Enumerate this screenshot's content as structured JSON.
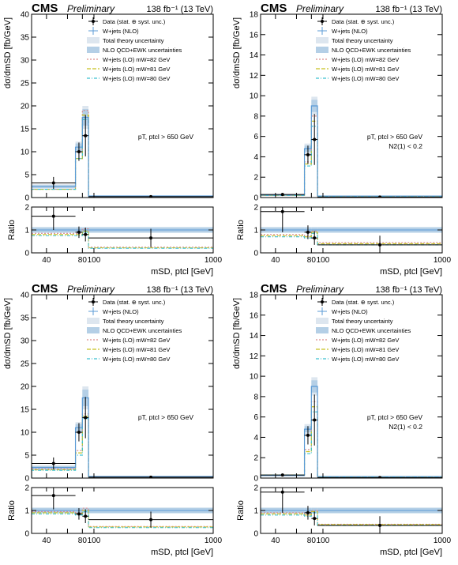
{
  "figure": {
    "experiment": "CMS",
    "status": "Preliminary",
    "lumi_label": "138 fb⁻¹ (13 TeV)",
    "x_title": "mSD, ptcl [GeV]",
    "y_title": "dσ/dmSD [fb/GeV]",
    "ratio_title": "Ratio",
    "legend": [
      "Data (stat. ⊕ syst. unc.)",
      "W+jets (NLO)",
      "Total theory uncertainty",
      "NLO QCD+EWK uncertainties",
      "W+jets (LO) mW=82 GeV",
      "W+jets (LO) mW=81 GeV",
      "W+jets (LO) mW=80 GeV"
    ],
    "colors": {
      "data": "#000000",
      "nlo": "#5b9bd5",
      "total_unc": "#dde6ef",
      "qcd_ewk_unc": "#b4cfe6",
      "lo82": "#d98c8c",
      "lo81": "#c8c020",
      "lo80": "#3cc0d0"
    }
  },
  "chart_data": [
    {
      "type": "bar",
      "panel": "top-left",
      "annotation": [
        "pT, ptcl > 650 GeV"
      ],
      "bins": [
        [
          30,
          70
        ],
        [
          70,
          80
        ],
        [
          80,
          90
        ],
        [
          90,
          1000
        ]
      ],
      "xlim": [
        30,
        1000
      ],
      "xscale": "log",
      "xticks": [
        40,
        60,
        80,
        100,
        1000
      ],
      "xtick_labels": [
        "40",
        "",
        "80",
        "100",
        "1000"
      ],
      "ylim": [
        0,
        40
      ],
      "yticks": [
        0,
        5,
        10,
        15,
        20,
        25,
        30,
        35,
        40
      ],
      "ratio_ylim": [
        0,
        2
      ],
      "ratio_yticks": [
        0,
        1,
        2
      ],
      "data": {
        "values": [
          3.2,
          10.0,
          13.5,
          0.2
        ],
        "errors": [
          1.3,
          2.0,
          4.5,
          0.1
        ]
      },
      "nlo": {
        "values": [
          2.4,
          11.0,
          17.5,
          0.35
        ],
        "total_unc": [
          0.5,
          1.2,
          2.5,
          0.06
        ],
        "qcd_ewk_unc": [
          0.3,
          0.8,
          1.8,
          0.04
        ]
      },
      "lo82": [
        1.8,
        8.5,
        19.0,
        0.3
      ],
      "lo81": [
        1.8,
        8.5,
        18.0,
        0.3
      ],
      "lo80": [
        1.8,
        8.5,
        17.0,
        0.3
      ],
      "ratio": {
        "data": [
          1.6,
          0.9,
          0.8,
          0.65
        ],
        "data_err": [
          0.6,
          0.25,
          0.3,
          0.4
        ],
        "unc": [
          0.12,
          0.12,
          0.12,
          0.12
        ],
        "lo82": [
          0.85,
          0.85,
          1.05,
          0.25
        ],
        "lo81": [
          0.8,
          0.8,
          0.95,
          0.22
        ],
        "lo80": [
          0.75,
          0.75,
          0.9,
          0.2
        ]
      }
    },
    {
      "type": "bar",
      "panel": "top-right",
      "annotation": [
        "pT, ptcl > 650 GeV",
        "N2(1) < 0.2"
      ],
      "bins": [
        [
          30,
          70
        ],
        [
          70,
          80
        ],
        [
          80,
          90
        ],
        [
          90,
          1000
        ]
      ],
      "xlim": [
        30,
        1000
      ],
      "xscale": "log",
      "xticks": [
        40,
        60,
        80,
        100,
        1000
      ],
      "xtick_labels": [
        "40",
        "",
        "80",
        "100",
        "1000"
      ],
      "ylim": [
        0,
        18
      ],
      "yticks": [
        0,
        2,
        4,
        6,
        8,
        10,
        12,
        14,
        16,
        18
      ],
      "ratio_ylim": [
        0,
        2
      ],
      "ratio_yticks": [
        0,
        1,
        2
      ],
      "data": {
        "values": [
          0.3,
          4.2,
          5.7,
          0.05
        ],
        "errors": [
          0.15,
          0.9,
          2.5,
          0.04
        ]
      },
      "nlo": {
        "values": [
          0.25,
          4.8,
          9.0,
          0.15
        ],
        "total_unc": [
          0.06,
          0.5,
          0.9,
          0.03
        ],
        "qcd_ewk_unc": [
          0.04,
          0.3,
          0.6,
          0.02
        ]
      },
      "lo82": [
        0.2,
        3.5,
        8.0,
        0.1
      ],
      "lo81": [
        0.2,
        3.3,
        7.5,
        0.1
      ],
      "lo80": [
        0.2,
        3.1,
        7.0,
        0.1
      ],
      "ratio": {
        "data": [
          1.8,
          0.9,
          0.65,
          0.35
        ],
        "data_err": [
          0.9,
          0.3,
          0.3,
          0.4
        ],
        "unc": [
          0.12,
          0.12,
          0.12,
          0.12
        ],
        "lo82": [
          0.8,
          0.75,
          0.95,
          0.45
        ],
        "lo81": [
          0.75,
          0.7,
          0.9,
          0.4
        ],
        "lo80": [
          0.7,
          0.65,
          0.85,
          0.35
        ]
      }
    },
    {
      "type": "bar",
      "panel": "bottom-left",
      "annotation": [
        "pT, ptcl > 650 GeV"
      ],
      "bins": [
        [
          30,
          70
        ],
        [
          70,
          80
        ],
        [
          80,
          90
        ],
        [
          90,
          1000
        ]
      ],
      "xlim": [
        30,
        1000
      ],
      "xscale": "log",
      "xticks": [
        40,
        60,
        80,
        100,
        1000
      ],
      "xtick_labels": [
        "40",
        "",
        "80",
        "100",
        "1000"
      ],
      "ylim": [
        0,
        40
      ],
      "yticks": [
        0,
        5,
        10,
        15,
        20,
        25,
        30,
        35,
        40
      ],
      "ratio_ylim": [
        0,
        2
      ],
      "ratio_yticks": [
        0,
        1,
        2
      ],
      "data": {
        "values": [
          3.2,
          10.0,
          13.2,
          0.2
        ],
        "errors": [
          1.3,
          2.0,
          4.5,
          0.1
        ]
      },
      "nlo": {
        "values": [
          2.3,
          11.0,
          17.5,
          0.35
        ],
        "total_unc": [
          0.5,
          1.2,
          2.5,
          0.06
        ],
        "qcd_ewk_unc": [
          0.3,
          0.8,
          1.8,
          0.04
        ]
      },
      "lo82": [
        2.0,
        6.0,
        14.0,
        0.3
      ],
      "lo81": [
        1.8,
        5.5,
        13.5,
        0.3
      ],
      "lo80": [
        1.7,
        5.0,
        13.0,
        0.3
      ],
      "ratio": {
        "data": [
          1.65,
          0.85,
          0.75,
          0.6
        ],
        "data_err": [
          0.6,
          0.25,
          0.3,
          0.35
        ],
        "unc": [
          0.12,
          0.12,
          0.12,
          0.12
        ],
        "lo82": [
          0.95,
          0.9,
          1.1,
          0.3
        ],
        "lo81": [
          0.9,
          0.85,
          1.0,
          0.28
        ],
        "lo80": [
          0.85,
          0.8,
          0.95,
          0.25
        ]
      }
    },
    {
      "type": "bar",
      "panel": "bottom-right",
      "annotation": [
        "pT, ptcl > 650 GeV",
        "N2(1) < 0.2"
      ],
      "bins": [
        [
          30,
          70
        ],
        [
          70,
          80
        ],
        [
          80,
          90
        ],
        [
          90,
          1000
        ]
      ],
      "xlim": [
        30,
        1000
      ],
      "xscale": "log",
      "xticks": [
        40,
        60,
        80,
        100,
        1000
      ],
      "xtick_labels": [
        "40",
        "",
        "80",
        "100",
        "1000"
      ],
      "ylim": [
        0,
        18
      ],
      "yticks": [
        0,
        2,
        4,
        6,
        8,
        10,
        12,
        14,
        16,
        18
      ],
      "ratio_ylim": [
        0,
        2
      ],
      "ratio_yticks": [
        0,
        1,
        2
      ],
      "data": {
        "values": [
          0.3,
          4.2,
          5.7,
          0.05
        ],
        "errors": [
          0.15,
          0.9,
          2.5,
          0.04
        ]
      },
      "nlo": {
        "values": [
          0.25,
          4.8,
          9.0,
          0.15
        ],
        "total_unc": [
          0.06,
          0.5,
          0.9,
          0.03
        ],
        "qcd_ewk_unc": [
          0.04,
          0.3,
          0.6,
          0.02
        ]
      },
      "lo82": [
        0.3,
        2.8,
        7.5,
        0.1
      ],
      "lo81": [
        0.3,
        2.6,
        7.0,
        0.1
      ],
      "lo80": [
        0.3,
        2.4,
        6.5,
        0.1
      ],
      "ratio": {
        "data": [
          1.8,
          0.9,
          0.65,
          0.35
        ],
        "data_err": [
          0.9,
          0.3,
          0.3,
          0.4
        ],
        "unc": [
          0.12,
          0.12,
          0.12,
          0.12
        ],
        "lo82": [
          0.9,
          0.85,
          1.0,
          0.4
        ],
        "lo81": [
          0.85,
          0.8,
          0.95,
          0.38
        ],
        "lo80": [
          0.8,
          0.75,
          0.9,
          0.35
        ]
      }
    }
  ]
}
